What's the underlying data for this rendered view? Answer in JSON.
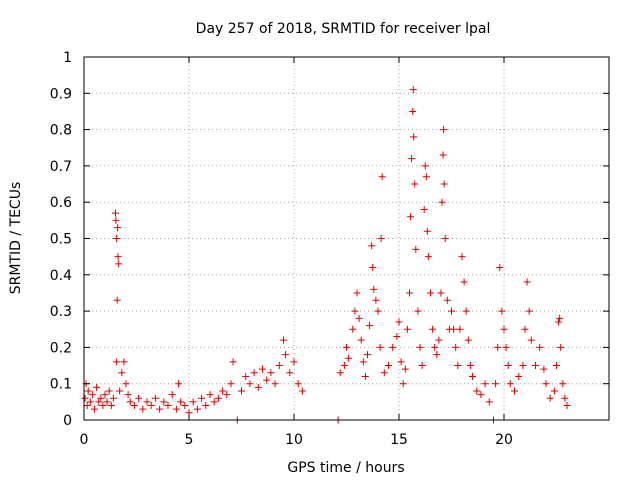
{
  "chart_data": {
    "type": "scatter",
    "title": "Day 257 of 2018, SRMTID for receiver lpal",
    "xlabel": "GPS time / hours",
    "ylabel": "SRMTID / TECUs",
    "xlim": [
      0,
      25
    ],
    "ylim": [
      0,
      1
    ],
    "xticks": [
      0,
      5,
      10,
      15,
      20
    ],
    "yticks": [
      0,
      0.1,
      0.2,
      0.3,
      0.4,
      0.5,
      0.6,
      0.7,
      0.8,
      0.9,
      1
    ],
    "grid": true,
    "marker": "+",
    "color": "#e00000",
    "series": [
      {
        "name": "SRMTID",
        "points": [
          [
            0.05,
            0.06
          ],
          [
            0.1,
            0.1
          ],
          [
            0.15,
            0.04
          ],
          [
            0.2,
            0.08
          ],
          [
            0.3,
            0.05
          ],
          [
            0.4,
            0.07
          ],
          [
            0.5,
            0.03
          ],
          [
            0.6,
            0.09
          ],
          [
            0.7,
            0.05
          ],
          [
            0.8,
            0.06
          ],
          [
            0.9,
            0.04
          ],
          [
            1.0,
            0.07
          ],
          [
            1.1,
            0.05
          ],
          [
            1.2,
            0.08
          ],
          [
            1.3,
            0.04
          ],
          [
            1.4,
            0.06
          ],
          [
            1.5,
            0.57
          ],
          [
            1.52,
            0.55
          ],
          [
            1.55,
            0.5
          ],
          [
            1.6,
            0.53
          ],
          [
            1.62,
            0.45
          ],
          [
            1.65,
            0.43
          ],
          [
            1.58,
            0.33
          ],
          [
            1.55,
            0.16
          ],
          [
            1.7,
            0.08
          ],
          [
            1.8,
            0.13
          ],
          [
            1.9,
            0.16
          ],
          [
            2.0,
            0.1
          ],
          [
            2.1,
            0.07
          ],
          [
            2.2,
            0.05
          ],
          [
            2.4,
            0.04
          ],
          [
            2.6,
            0.06
          ],
          [
            2.8,
            0.03
          ],
          [
            3.0,
            0.05
          ],
          [
            3.2,
            0.04
          ],
          [
            3.4,
            0.06
          ],
          [
            3.6,
            0.03
          ],
          [
            3.8,
            0.05
          ],
          [
            4.0,
            0.04
          ],
          [
            4.2,
            0.07
          ],
          [
            4.4,
            0.03
          ],
          [
            4.5,
            0.1
          ],
          [
            4.6,
            0.05
          ],
          [
            4.8,
            0.04
          ],
          [
            5.0,
            0.02
          ],
          [
            5.2,
            0.05
          ],
          [
            5.4,
            0.03
          ],
          [
            5.6,
            0.06
          ],
          [
            5.8,
            0.04
          ],
          [
            6.0,
            0.07
          ],
          [
            6.2,
            0.05
          ],
          [
            6.4,
            0.06
          ],
          [
            6.6,
            0.08
          ],
          [
            6.8,
            0.07
          ],
          [
            7.0,
            0.1
          ],
          [
            7.1,
            0.16
          ],
          [
            7.3,
            0.0
          ],
          [
            7.5,
            0.08
          ],
          [
            7.7,
            0.12
          ],
          [
            7.9,
            0.1
          ],
          [
            8.1,
            0.13
          ],
          [
            8.3,
            0.09
          ],
          [
            8.5,
            0.14
          ],
          [
            8.7,
            0.11
          ],
          [
            8.9,
            0.13
          ],
          [
            9.1,
            0.1
          ],
          [
            9.3,
            0.15
          ],
          [
            9.5,
            0.22
          ],
          [
            9.6,
            0.18
          ],
          [
            9.8,
            0.13
          ],
          [
            10.0,
            0.16
          ],
          [
            10.2,
            0.1
          ],
          [
            10.4,
            0.08
          ],
          [
            12.1,
            0.0
          ],
          [
            12.2,
            0.13
          ],
          [
            12.4,
            0.15
          ],
          [
            12.5,
            0.2
          ],
          [
            12.6,
            0.17
          ],
          [
            12.8,
            0.25
          ],
          [
            12.9,
            0.3
          ],
          [
            13.0,
            0.35
          ],
          [
            13.1,
            0.28
          ],
          [
            13.2,
            0.22
          ],
          [
            13.3,
            0.16
          ],
          [
            13.4,
            0.12
          ],
          [
            13.5,
            0.18
          ],
          [
            13.6,
            0.26
          ],
          [
            13.7,
            0.48
          ],
          [
            13.75,
            0.42
          ],
          [
            13.8,
            0.36
          ],
          [
            13.9,
            0.33
          ],
          [
            14.0,
            0.3
          ],
          [
            14.1,
            0.2
          ],
          [
            14.2,
            0.67
          ],
          [
            14.15,
            0.5
          ],
          [
            14.3,
            0.13
          ],
          [
            14.5,
            0.15
          ],
          [
            14.7,
            0.2
          ],
          [
            14.9,
            0.23
          ],
          [
            15.0,
            0.27
          ],
          [
            15.1,
            0.16
          ],
          [
            15.2,
            0.1
          ],
          [
            15.3,
            0.14
          ],
          [
            15.4,
            0.25
          ],
          [
            15.5,
            0.35
          ],
          [
            15.55,
            0.56
          ],
          [
            15.6,
            0.72
          ],
          [
            15.65,
            0.85
          ],
          [
            15.68,
            0.91
          ],
          [
            15.7,
            0.78
          ],
          [
            15.75,
            0.65
          ],
          [
            15.8,
            0.47
          ],
          [
            15.9,
            0.3
          ],
          [
            16.0,
            0.2
          ],
          [
            16.1,
            0.15
          ],
          [
            16.2,
            0.58
          ],
          [
            16.25,
            0.7
          ],
          [
            16.3,
            0.67
          ],
          [
            16.35,
            0.52
          ],
          [
            16.4,
            0.45
          ],
          [
            16.5,
            0.35
          ],
          [
            16.6,
            0.25
          ],
          [
            16.7,
            0.2
          ],
          [
            16.8,
            0.18
          ],
          [
            16.9,
            0.22
          ],
          [
            17.0,
            0.35
          ],
          [
            17.05,
            0.6
          ],
          [
            17.1,
            0.73
          ],
          [
            17.12,
            0.8
          ],
          [
            17.15,
            0.65
          ],
          [
            17.2,
            0.5
          ],
          [
            17.3,
            0.33
          ],
          [
            17.4,
            0.25
          ],
          [
            17.5,
            0.3
          ],
          [
            17.6,
            0.25
          ],
          [
            17.7,
            0.2
          ],
          [
            17.8,
            0.15
          ],
          [
            17.9,
            0.25
          ],
          [
            18.0,
            0.45
          ],
          [
            18.1,
            0.38
          ],
          [
            18.2,
            0.3
          ],
          [
            18.3,
            0.22
          ],
          [
            18.4,
            0.15
          ],
          [
            18.5,
            0.12
          ],
          [
            18.7,
            0.08
          ],
          [
            18.9,
            0.07
          ],
          [
            19.1,
            0.1
          ],
          [
            19.3,
            0.05
          ],
          [
            19.5,
            0.0
          ],
          [
            19.6,
            0.1
          ],
          [
            19.7,
            0.2
          ],
          [
            19.8,
            0.42
          ],
          [
            19.9,
            0.3
          ],
          [
            20.0,
            0.25
          ],
          [
            20.1,
            0.2
          ],
          [
            20.2,
            0.15
          ],
          [
            20.3,
            0.1
          ],
          [
            20.5,
            0.08
          ],
          [
            20.7,
            0.12
          ],
          [
            20.9,
            0.15
          ],
          [
            21.0,
            0.25
          ],
          [
            21.1,
            0.38
          ],
          [
            21.2,
            0.3
          ],
          [
            21.3,
            0.22
          ],
          [
            21.5,
            0.15
          ],
          [
            21.7,
            0.2
          ],
          [
            21.9,
            0.14
          ],
          [
            22.0,
            0.1
          ],
          [
            22.2,
            0.06
          ],
          [
            22.4,
            0.08
          ],
          [
            22.5,
            0.15
          ],
          [
            22.6,
            0.27
          ],
          [
            22.65,
            0.28
          ],
          [
            22.7,
            0.2
          ],
          [
            22.8,
            0.1
          ],
          [
            22.9,
            0.06
          ],
          [
            23.0,
            0.04
          ]
        ]
      }
    ]
  }
}
